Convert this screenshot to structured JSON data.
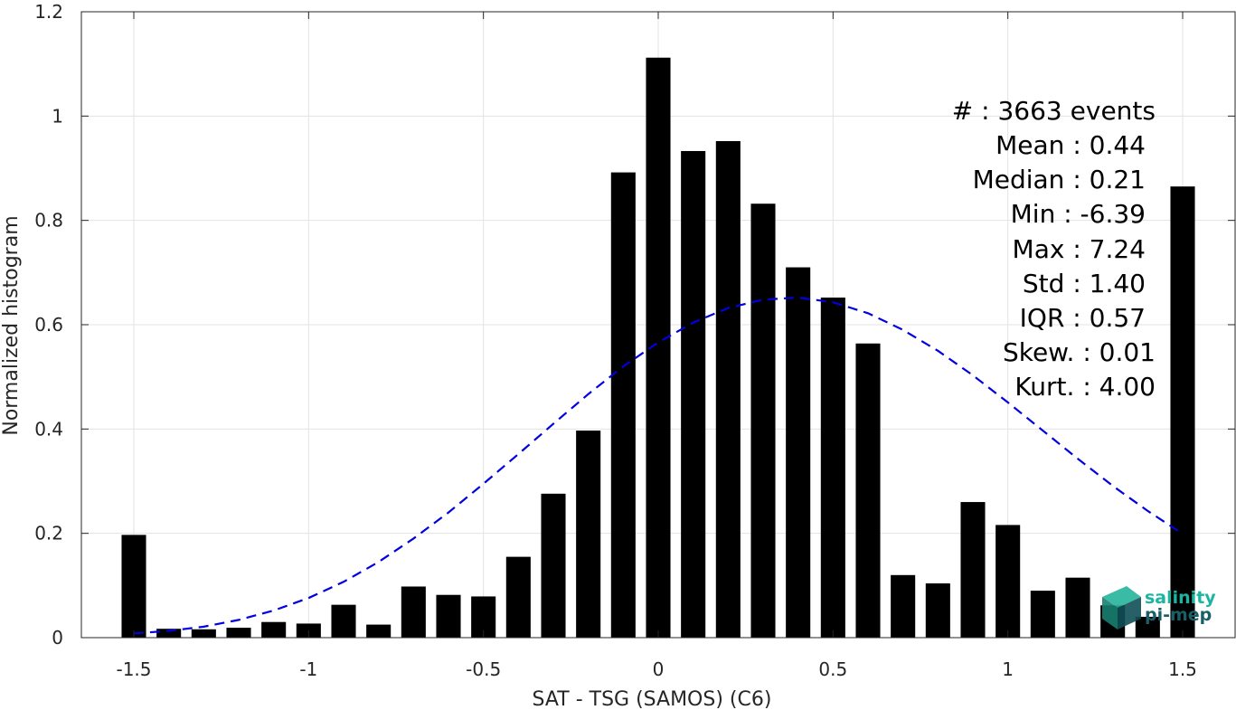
{
  "chart_data": {
    "type": "bar",
    "xlabel": "SAT - TSG (SAMOS) (C6)",
    "ylabel": "Normalized histogram",
    "xlim": [
      -1.65,
      1.65
    ],
    "ylim": [
      0,
      1.2
    ],
    "grid": true,
    "x_ticks": [
      -1.5,
      -1,
      -0.5,
      0,
      0.5,
      1,
      1.5
    ],
    "x_tick_labels": [
      "-1.5",
      "-1",
      "-0.5",
      "0",
      "0.5",
      "1",
      "1.5"
    ],
    "y_ticks": [
      0,
      0.2,
      0.4,
      0.6,
      0.8,
      1,
      1.2
    ],
    "y_tick_labels": [
      "0",
      "0.2",
      "0.4",
      "0.6",
      "0.8",
      "1",
      "1.2"
    ],
    "bar_width": 0.07,
    "x": [
      -1.5,
      -1.4,
      -1.3,
      -1.2,
      -1.1,
      -1.0,
      -0.9,
      -0.8,
      -0.7,
      -0.6,
      -0.5,
      -0.4,
      -0.3,
      -0.2,
      -0.1,
      0.0,
      0.1,
      0.2,
      0.3,
      0.4,
      0.5,
      0.6,
      0.7,
      0.8,
      0.9,
      1.0,
      1.1,
      1.2,
      1.3,
      1.4,
      1.5
    ],
    "values": [
      0.197,
      0.017,
      0.016,
      0.019,
      0.03,
      0.027,
      0.063,
      0.025,
      0.098,
      0.082,
      0.079,
      0.155,
      0.276,
      0.397,
      0.892,
      1.112,
      0.933,
      0.952,
      0.832,
      0.71,
      0.652,
      0.564,
      0.12,
      0.104,
      0.26,
      0.216,
      0.09,
      0.115,
      0.062,
      0.04,
      0.865
    ],
    "bar_color": "#000000",
    "fit_curve": {
      "style": "dashed",
      "color": "#0000e0",
      "x": [
        -1.5,
        -1.4,
        -1.3,
        -1.2,
        -1.1,
        -1.0,
        -0.9,
        -0.8,
        -0.7,
        -0.6,
        -0.5,
        -0.4,
        -0.3,
        -0.2,
        -0.1,
        0.0,
        0.1,
        0.2,
        0.3,
        0.4,
        0.5,
        0.6,
        0.7,
        0.8,
        0.9,
        1.0,
        1.1,
        1.2,
        1.3,
        1.4,
        1.5
      ],
      "y": [
        0.008,
        0.013,
        0.021,
        0.034,
        0.052,
        0.076,
        0.107,
        0.145,
        0.19,
        0.24,
        0.295,
        0.352,
        0.41,
        0.467,
        0.52,
        0.566,
        0.604,
        0.632,
        0.648,
        0.652,
        0.643,
        0.622,
        0.59,
        0.55,
        0.503,
        0.451,
        0.397,
        0.343,
        0.291,
        0.243,
        0.199
      ]
    }
  },
  "stats": {
    "events": "#  : 3663 events",
    "mean": "Mean : 0.44",
    "median": "Median : 0.21",
    "min": "Min : -6.39",
    "max": "Max : 7.24",
    "std": "Std : 1.40",
    "iqr": "IQR : 0.57",
    "skew": "Skew. : 0.01",
    "kurt": "Kurt. : 4.00"
  },
  "logo": {
    "line1": "salinity",
    "line2": "pi-mep",
    "colors": {
      "text_top": "#1bb5a0",
      "text_bottom": "#1a5f68",
      "cube_top": "#25b49c",
      "cube_side": "#0f4f57"
    }
  }
}
